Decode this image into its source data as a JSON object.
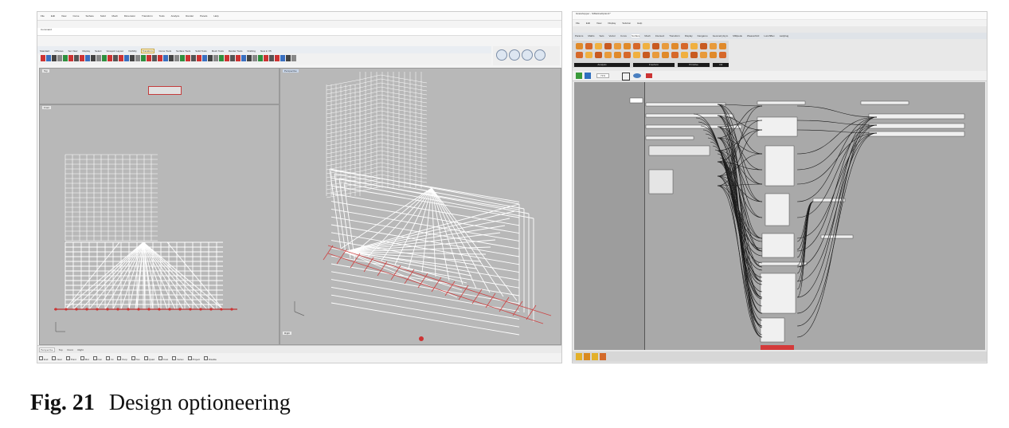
{
  "rhino": {
    "menu": [
      "File",
      "Edit",
      "View",
      "Curve",
      "Surface",
      "Solid",
      "Mesh",
      "Dimension",
      "Transform",
      "Tools",
      "Analyze",
      "Render",
      "Panels",
      "Help"
    ],
    "command_label": "Command",
    "tabs": [
      "Standard",
      "CPlanes",
      "Set View",
      "Display",
      "Select",
      "Viewport Layout",
      "Visibility",
      "Transform",
      "Curve Tools",
      "Surface Tools",
      "Solid Tools",
      "Mesh Tools",
      "Render Tools",
      "Drafting",
      "New in V5"
    ],
    "active_tab": "Transform",
    "viewports": {
      "top": "Top",
      "front": "Front",
      "perspective": "Perspective",
      "right": "Right"
    },
    "bottom_tabs": [
      "Perspective",
      "Top",
      "Front",
      "Right"
    ],
    "snaps": [
      "End",
      "Near",
      "Point",
      "Mid",
      "Cen",
      "Int",
      "Perp",
      "Tan",
      "Quad",
      "Knot",
      "Vertex",
      "Project",
      "Disable"
    ]
  },
  "grasshopper": {
    "title": "Grasshopper - StMarinaOption1*",
    "menu": [
      "File",
      "Edit",
      "View",
      "Display",
      "Solution",
      "Help"
    ],
    "tabs": [
      "Params",
      "Maths",
      "Sets",
      "Vector",
      "Curve",
      "Surface",
      "Mesh",
      "Intersect",
      "Transform",
      "Display",
      "Kangaroo",
      "GeometryGym",
      "Millipede",
      "Weaverbird",
      "LunchBox",
      "Ladybug"
    ],
    "active_tab": "Surface",
    "groups": [
      "Analysis",
      "Freeform",
      "Primitive",
      "Util"
    ],
    "zoom": "71%"
  },
  "caption": {
    "label": "Fig. 21",
    "text": "Design optioneering"
  },
  "colors": {
    "accent_red": "#d33b3b",
    "viewport_grey": "#b8b8b8",
    "canvas_grey": "#a9a9a9"
  }
}
